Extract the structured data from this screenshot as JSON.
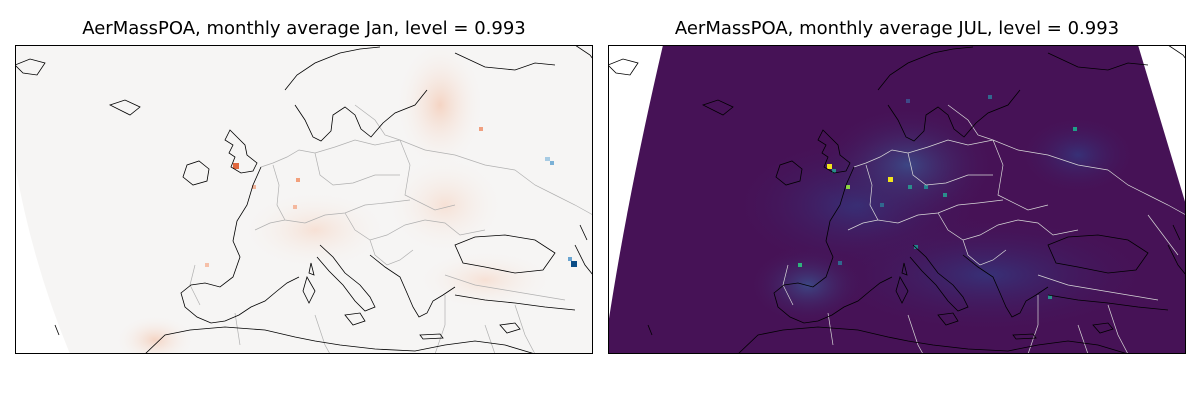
{
  "figure": {
    "panels": [
      {
        "id": "jan",
        "title": "AerMassPOA, monthly average Jan, level = 0.993",
        "colormap": "diverging-red-white-blue",
        "colors": {
          "background": "#f6f5f4",
          "positive": "#e0683f",
          "negative": "#0b4d86"
        }
      },
      {
        "id": "jul",
        "title": "AerMassPOA, monthly average JUL, level = 0.993",
        "colormap": "viridis",
        "colors": {
          "background": "#461256",
          "highlight": "#f3e51b",
          "mid": "#2a8e8c"
        }
      }
    ],
    "coastline_color": "#000000",
    "border_color_jan": "#b0b0b0",
    "border_color_jul": "#d8d8d8"
  }
}
